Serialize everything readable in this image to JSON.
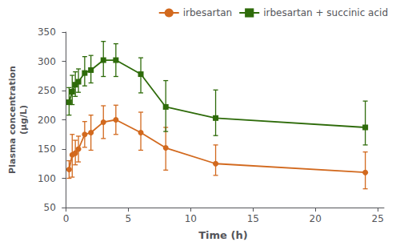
{
  "chart_data": {
    "type": "line",
    "xlabel": "Time (h)",
    "ylabel": "Plasma concentration\n(μg/L)",
    "x": [
      0.25,
      0.5,
      0.75,
      1.0,
      1.5,
      2.0,
      3.0,
      4.0,
      6.0,
      8.0,
      12.0,
      24.0
    ],
    "series": [
      {
        "name": "irbesartan",
        "color": "#D2691E",
        "marker": "circle",
        "values": [
          115,
          140,
          143,
          150,
          175,
          178,
          196,
          200,
          178,
          152,
          125,
          110
        ],
        "yerr_low": [
          15,
          38,
          20,
          22,
          22,
          30,
          28,
          25,
          30,
          38,
          20,
          28
        ],
        "yerr_high": [
          15,
          35,
          22,
          22,
          22,
          30,
          28,
          25,
          35,
          35,
          32,
          35
        ]
      },
      {
        "name": "irbesartan + succinic acid",
        "color": "#2E6B0A",
        "marker": "square",
        "values": [
          230,
          248,
          260,
          265,
          280,
          285,
          302,
          302,
          278,
          222,
          203,
          187
        ],
        "yerr_low": [
          22,
          22,
          20,
          18,
          22,
          22,
          28,
          28,
          32,
          42,
          30,
          30
        ],
        "yerr_high": [
          25,
          28,
          22,
          22,
          28,
          25,
          32,
          28,
          28,
          45,
          48,
          45
        ]
      }
    ],
    "xlim": [
      -0.3,
      25.5
    ],
    "ylim": [
      50,
      350
    ],
    "xticks": [
      0,
      5,
      10,
      15,
      20,
      25
    ],
    "yticks": [
      50,
      100,
      150,
      200,
      250,
      300,
      350
    ],
    "grid": false,
    "legend": "upper right"
  }
}
